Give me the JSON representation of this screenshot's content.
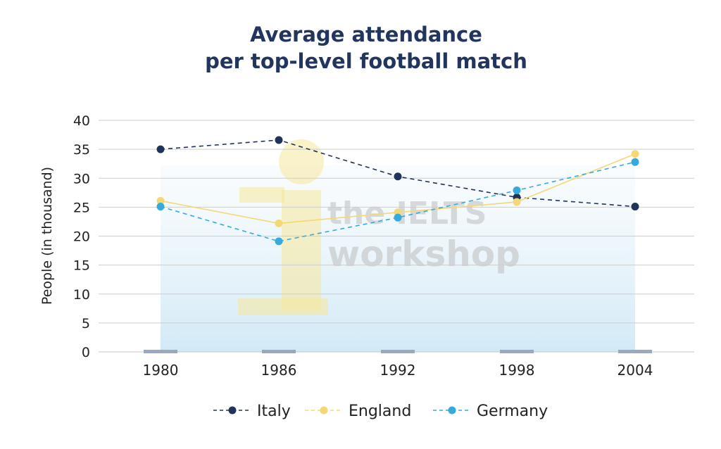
{
  "chart_data": {
    "type": "line",
    "title": [
      "Average attendance",
      "per top-level football match"
    ],
    "ylabel": "People (in thousand)",
    "xlabel": "",
    "categories": [
      "1980",
      "1986",
      "1992",
      "1998",
      "2004"
    ],
    "ylim": [
      0,
      40
    ],
    "yticks": [
      0,
      5,
      10,
      15,
      20,
      25,
      30,
      35,
      40
    ],
    "grid": true,
    "legend_position": "bottom",
    "series": [
      {
        "name": "Italy",
        "values": [
          35,
          36.6,
          30.3,
          26.7,
          25.1
        ],
        "color": "#21335a",
        "dash": "dashed"
      },
      {
        "name": "England",
        "values": [
          26.1,
          22.2,
          24.1,
          25.9,
          34.2
        ],
        "color": "#f5d876",
        "dash": "solid"
      },
      {
        "name": "Germany",
        "values": [
          25.1,
          19.1,
          23.2,
          27.9,
          32.8
        ],
        "color": "#35abdc",
        "dash": "dashed"
      }
    ],
    "watermark": [
      "the IELTS",
      "workshop"
    ]
  }
}
